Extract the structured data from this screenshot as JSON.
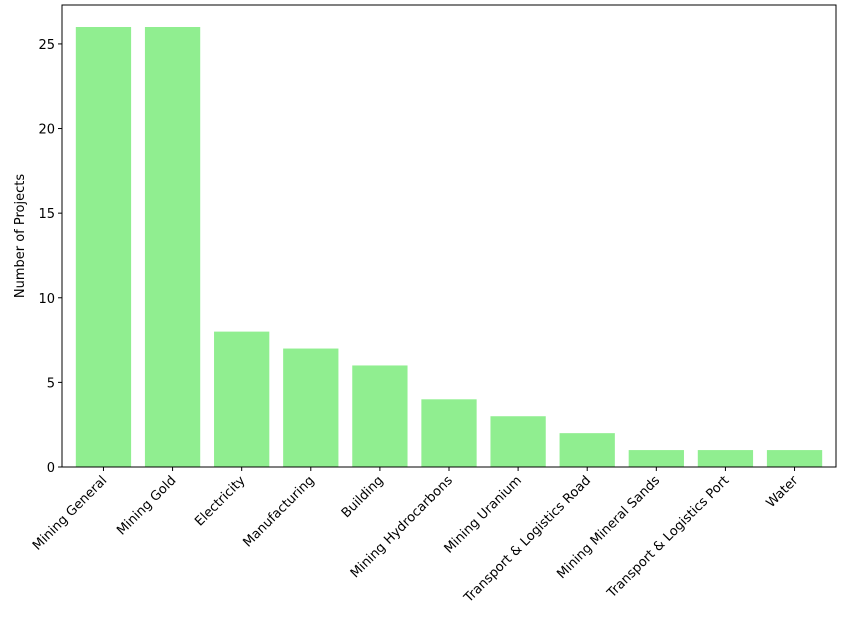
{
  "chart_data": {
    "type": "bar",
    "title": "",
    "xlabel": "",
    "ylabel": "Number of Projects",
    "categories": [
      "Mining General",
      "Mining Gold",
      "Electricity",
      "Manufacturing",
      "Building",
      "Mining Hydrocarbons",
      "Mining Uranium",
      "Transport & Logistics Road",
      "Mining Mineral Sands",
      "Transport & Logistics Port",
      "Water"
    ],
    "values": [
      26,
      26,
      8,
      7,
      6,
      4,
      3,
      2,
      1,
      1,
      1
    ],
    "ylim": [
      0,
      27.3
    ],
    "yticks": [
      0,
      5,
      10,
      15,
      20,
      25
    ],
    "bar_color": "#90ee90",
    "grid": false,
    "legend": "none"
  }
}
